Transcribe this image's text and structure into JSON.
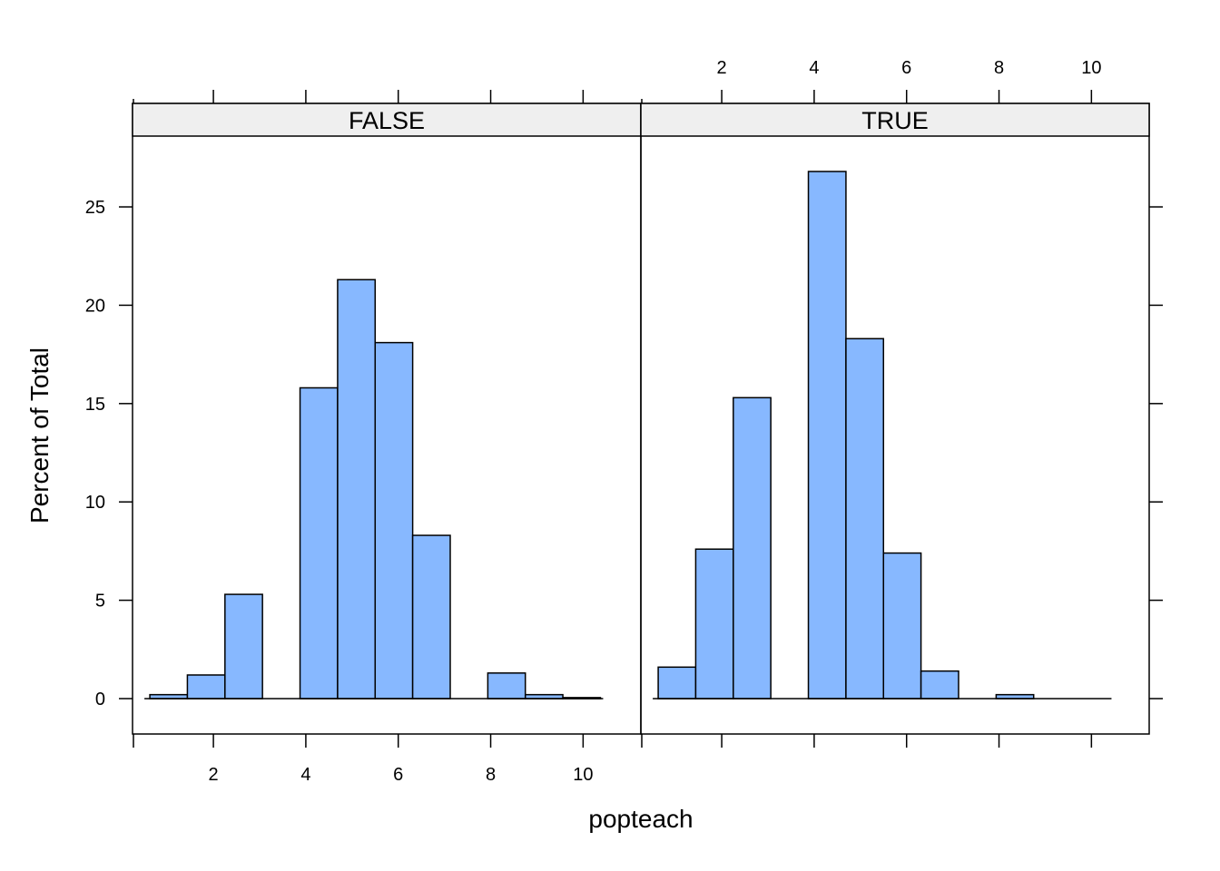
{
  "chart_data": {
    "type": "bar",
    "xlabel": "popteach",
    "ylabel": "Percent of Total",
    "xlim": [
      0.25,
      11.25
    ],
    "ylim": [
      -1.8,
      28.6
    ],
    "xticks": [
      2,
      4,
      6,
      8,
      10
    ],
    "yticks": [
      0,
      5,
      10,
      15,
      20,
      25
    ],
    "bin_edges": [
      0.625,
      1.437,
      2.25,
      3.062,
      3.875,
      4.688,
      5.5,
      6.312,
      7.125,
      7.938,
      8.75,
      9.562,
      10.375
    ],
    "fill_color": "#87b8ff",
    "strip_color": "#efefef",
    "panels": [
      {
        "strip_label": "FALSE",
        "values": [
          0.2,
          1.2,
          5.3,
          0.0,
          15.8,
          21.3,
          18.1,
          8.3,
          0.0,
          1.3,
          0.2,
          0.05
        ]
      },
      {
        "strip_label": "TRUE",
        "values": [
          1.6,
          7.6,
          15.3,
          0.0,
          26.8,
          18.3,
          7.4,
          1.4,
          0.0,
          0.2,
          0.0,
          0.0
        ]
      }
    ]
  }
}
